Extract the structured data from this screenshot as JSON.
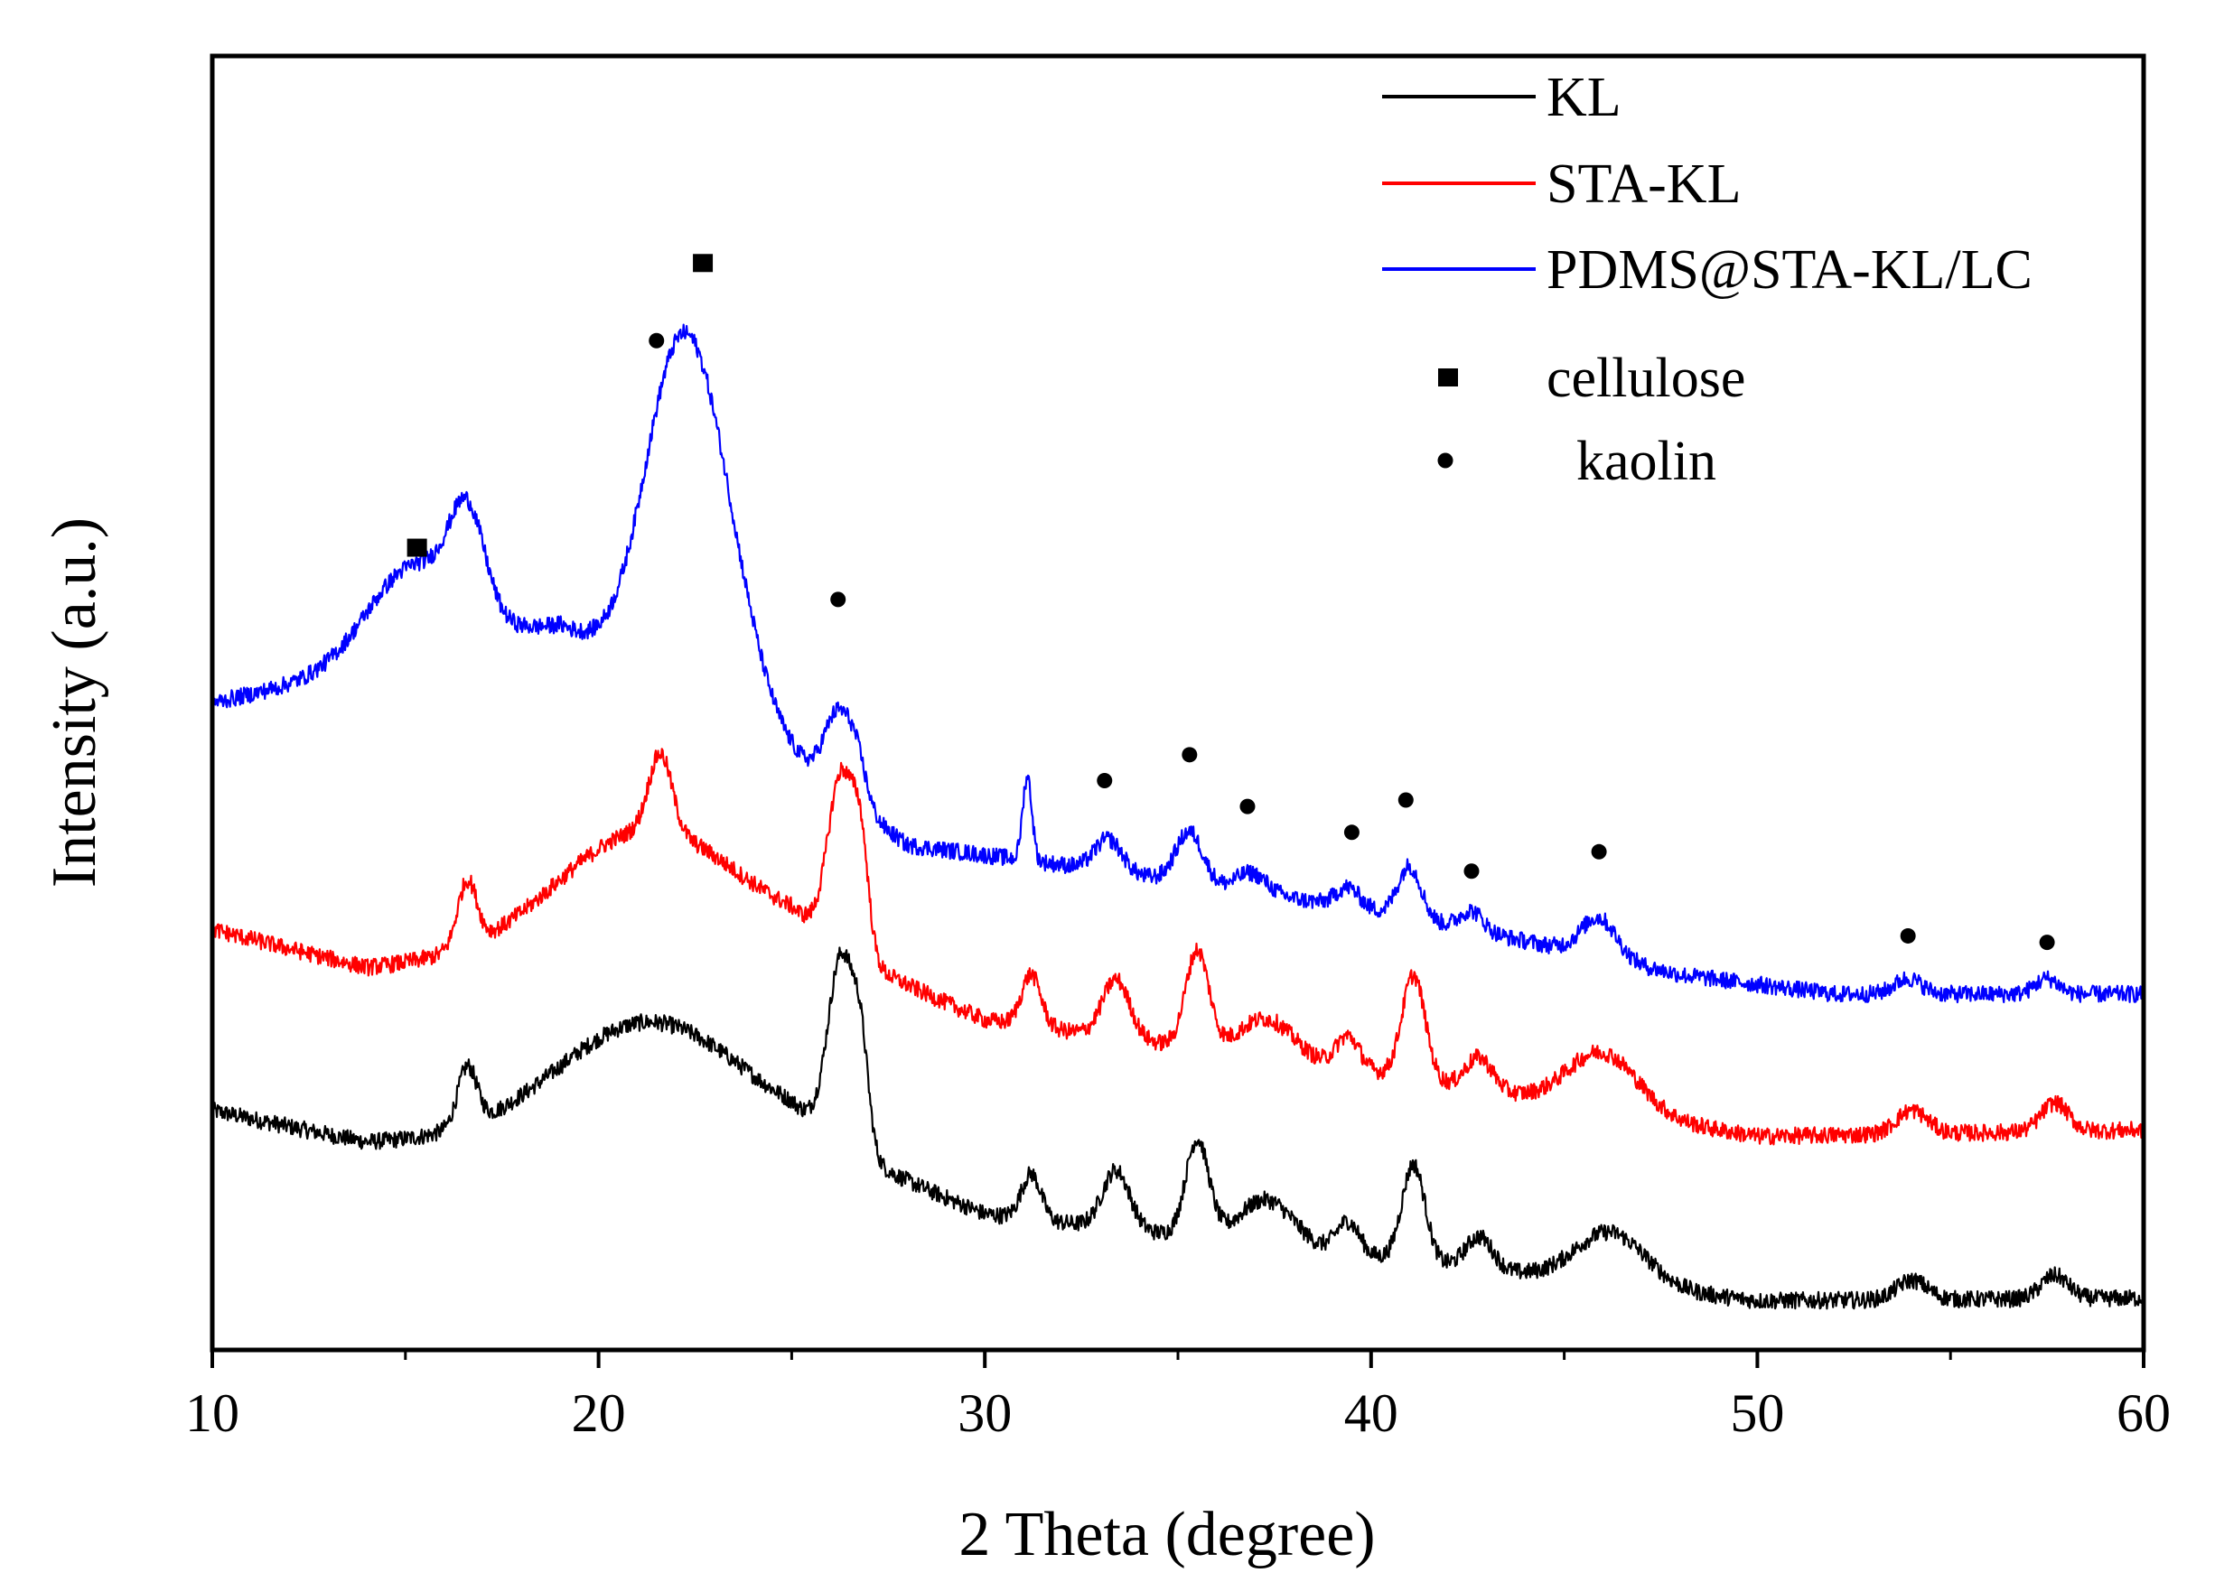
{
  "chart_data": {
    "type": "line",
    "title": "",
    "xlabel": "2 Theta (degree)",
    "ylabel": "Intensity (a.u.)",
    "xlim": [
      10,
      60
    ],
    "ylim": [
      0,
      100
    ],
    "x_ticks": [
      10,
      20,
      30,
      40,
      50,
      60
    ],
    "x_tick_labels": [
      "10",
      "20",
      "30",
      "40",
      "50",
      "60"
    ],
    "y_ticks_shown": false,
    "grid": false,
    "legend_position": "top-right",
    "series": [
      {
        "name": "KL",
        "color": "#000000",
        "peaks": [
          {
            "x": 16.6,
            "h": 4.5,
            "w": 0.25
          },
          {
            "x": 21.3,
            "h": 9.0,
            "w": 2.4
          },
          {
            "x": 26.3,
            "h": 14.5,
            "w": 0.35
          },
          {
            "x": 26.8,
            "h": 6.0,
            "w": 0.2
          },
          {
            "x": 31.2,
            "h": 3.5,
            "w": 0.25
          },
          {
            "x": 33.4,
            "h": 4.5,
            "w": 0.35
          },
          {
            "x": 35.5,
            "h": 7.5,
            "w": 0.3
          },
          {
            "x": 37.3,
            "h": 3.5,
            "w": 0.7
          },
          {
            "x": 39.4,
            "h": 2.5,
            "w": 0.3
          },
          {
            "x": 41.1,
            "h": 7.5,
            "w": 0.3
          },
          {
            "x": 42.8,
            "h": 2.5,
            "w": 0.35
          },
          {
            "x": 46.2,
            "h": 4.0,
            "w": 0.9
          },
          {
            "x": 54.0,
            "h": 1.5,
            "w": 0.4
          },
          {
            "x": 57.7,
            "h": 1.8,
            "w": 0.35
          }
        ],
        "background": [
          [
            10,
            18.5
          ],
          [
            14,
            16.0
          ],
          [
            25,
            16.5
          ],
          [
            30,
            10.5
          ],
          [
            40,
            7.2
          ],
          [
            50,
            3.8
          ],
          [
            60,
            4.0
          ]
        ]
      },
      {
        "name": "STA-KL",
        "color": "#ff0000",
        "peaks": [
          {
            "x": 16.6,
            "h": 5.0,
            "w": 0.25
          },
          {
            "x": 21.6,
            "h": 6.0,
            "w": 0.3
          },
          {
            "x": 21.2,
            "h": 9.0,
            "w": 2.3
          },
          {
            "x": 26.3,
            "h": 13.5,
            "w": 0.35
          },
          {
            "x": 26.8,
            "h": 6.5,
            "w": 0.2
          },
          {
            "x": 31.2,
            "h": 4.0,
            "w": 0.25
          },
          {
            "x": 33.4,
            "h": 4.5,
            "w": 0.35
          },
          {
            "x": 35.5,
            "h": 7.5,
            "w": 0.3
          },
          {
            "x": 37.3,
            "h": 3.0,
            "w": 0.7
          },
          {
            "x": 39.4,
            "h": 2.5,
            "w": 0.3
          },
          {
            "x": 41.1,
            "h": 8.0,
            "w": 0.3
          },
          {
            "x": 42.8,
            "h": 2.5,
            "w": 0.35
          },
          {
            "x": 46.0,
            "h": 4.5,
            "w": 0.9
          },
          {
            "x": 54.0,
            "h": 1.8,
            "w": 0.4
          },
          {
            "x": 57.7,
            "h": 2.2,
            "w": 0.35
          }
        ],
        "background": [
          [
            10,
            32.5
          ],
          [
            14,
            29.5
          ],
          [
            25,
            32.0
          ],
          [
            30,
            25.5
          ],
          [
            40,
            21.5
          ],
          [
            50,
            16.5
          ],
          [
            60,
            17.0
          ]
        ]
      },
      {
        "name": "PDMS@STA-KL/LC",
        "color": "#0000ff",
        "peaks": [
          {
            "x": 15.2,
            "h": 7.0,
            "w": 1.2
          },
          {
            "x": 16.6,
            "h": 7.5,
            "w": 0.45
          },
          {
            "x": 21.7,
            "h": 9.0,
            "w": 0.8
          },
          {
            "x": 22.6,
            "h": 22.0,
            "w": 1.0
          },
          {
            "x": 26.2,
            "h": 6.0,
            "w": 0.35
          },
          {
            "x": 26.7,
            "h": 3.0,
            "w": 0.25
          },
          {
            "x": 31.1,
            "h": 6.5,
            "w": 0.12
          },
          {
            "x": 33.2,
            "h": 2.5,
            "w": 0.35
          },
          {
            "x": 35.3,
            "h": 4.0,
            "w": 0.35
          },
          {
            "x": 36.9,
            "h": 1.5,
            "w": 0.4
          },
          {
            "x": 39.4,
            "h": 1.5,
            "w": 0.3
          },
          {
            "x": 41.0,
            "h": 4.0,
            "w": 0.3
          },
          {
            "x": 42.6,
            "h": 1.5,
            "w": 0.3
          },
          {
            "x": 45.9,
            "h": 3.0,
            "w": 0.45
          },
          {
            "x": 53.9,
            "h": 1.2,
            "w": 0.35
          },
          {
            "x": 57.5,
            "h": 1.2,
            "w": 0.3
          }
        ],
        "background": [
          [
            10,
            50.0
          ],
          [
            13,
            52.0
          ],
          [
            17,
            55.0
          ],
          [
            19,
            56.0
          ],
          [
            24,
            48.0
          ],
          [
            28,
            39.0
          ],
          [
            32,
            37.5
          ],
          [
            40,
            34.0
          ],
          [
            45,
            31.0
          ],
          [
            48,
            29.0
          ],
          [
            52,
            27.5
          ],
          [
            60,
            27.5
          ]
        ]
      }
    ],
    "markers": {
      "cellulose": [
        {
          "x": 15.3,
          "y": 62.0
        },
        {
          "x": 22.7,
          "y": 84.0
        }
      ],
      "kaolin": [
        {
          "x": 21.5,
          "y": 78.0
        },
        {
          "x": 26.2,
          "y": 58.0
        },
        {
          "x": 33.1,
          "y": 44.0
        },
        {
          "x": 35.3,
          "y": 46.0
        },
        {
          "x": 36.8,
          "y": 42.0
        },
        {
          "x": 39.5,
          "y": 40.0
        },
        {
          "x": 40.9,
          "y": 42.5
        },
        {
          "x": 42.6,
          "y": 37.0
        },
        {
          "x": 45.9,
          "y": 38.5
        },
        {
          "x": 53.9,
          "y": 32.0
        },
        {
          "x": 57.5,
          "y": 31.5
        }
      ]
    },
    "legend": {
      "lines": [
        {
          "label": "KL",
          "color": "#000000"
        },
        {
          "label": "STA-KL",
          "color": "#ff0000"
        },
        {
          "label": "PDMS@STA-KL/LC",
          "color": "#0000ff"
        }
      ],
      "symbols": [
        {
          "label": "cellulose",
          "shape": "square"
        },
        {
          "label": "kaolin",
          "shape": "circle"
        }
      ]
    }
  }
}
